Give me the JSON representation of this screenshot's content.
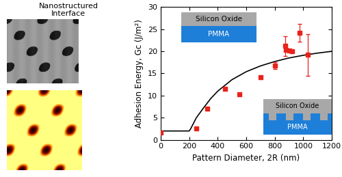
{
  "chart_data": {
    "type": "scatter",
    "x_label": "Pattern Diameter, 2R (nm)",
    "y_label": "Adhesion Energy, Gc (J/m²)",
    "xlim": [
      0,
      1200
    ],
    "xticks": [
      0,
      200,
      400,
      600,
      800,
      1000,
      1200
    ],
    "ylim": [
      0,
      30
    ],
    "yticks": [
      0,
      5,
      10,
      15,
      20,
      25,
      30
    ],
    "grid": false,
    "annotations": [
      "Nanostructured\nInterface",
      "Silicon Oxide",
      "PMMA",
      "Silicon Oxide",
      "PMMA"
    ],
    "series": [
      {
        "type": "scatter",
        "color": "#e8231b",
        "marker": "square",
        "x": [
          0,
          250,
          325,
          450,
          550,
          700,
          800,
          875,
          880,
          900,
          920,
          975,
          1030
        ],
        "values": [
          1.6,
          2.6,
          7.0,
          11.6,
          10.3,
          14.2,
          16.8,
          21.2,
          20.3,
          20.1,
          20.0,
          24.2,
          19.2
        ],
        "errors": [
          null,
          null,
          null,
          null,
          null,
          null,
          0.8,
          2.2,
          null,
          null,
          null,
          2.0,
          4.7
        ]
      },
      {
        "type": "line",
        "color": "#000000",
        "line_style": "solid",
        "x": [
          0,
          200,
          210,
          250,
          300,
          350,
          400,
          500,
          600,
          700,
          800,
          900,
          1000,
          1100,
          1200
        ],
        "values": [
          2.0,
          2.0,
          2.5,
          5.0,
          7.2,
          9.3,
          11.0,
          13.6,
          15.4,
          16.7,
          17.7,
          18.5,
          19.1,
          19.6,
          20.0
        ]
      }
    ]
  }
}
